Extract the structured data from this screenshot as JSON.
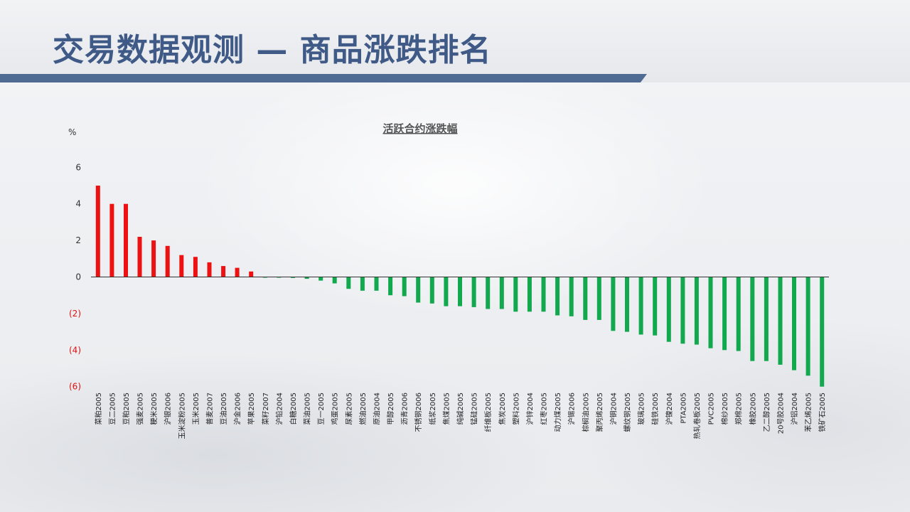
{
  "slide": {
    "title": "交易数据观测 — 商品涨跌排名"
  },
  "chart_data": {
    "type": "bar",
    "title": "活跃合约涨跌幅",
    "ylabel": "%",
    "ylim": [
      -6,
      6
    ],
    "yticks": [
      6,
      4,
      2,
      0,
      -2,
      -4,
      -6
    ],
    "ytick_labels": [
      "6",
      "4",
      "2",
      "0",
      "(2)",
      "(4)",
      "(6)"
    ],
    "grid": false,
    "legend": "none",
    "colors": {
      "positive": "#ee1111",
      "negative": "#11a84e",
      "negative_tick_label": "#dd1111",
      "axis": "#333333"
    },
    "categories": [
      "菜粕2005",
      "豆二2005",
      "豆粕2005",
      "强麦2005",
      "粳米2005",
      "沪银2006",
      "玉米淀粉2005",
      "玉米2005",
      "普麦2007",
      "豆油2005",
      "沪金2006",
      "苹果2005",
      "菜籽2007",
      "沪铅2004",
      "白糖2005",
      "菜油2005",
      "豆一2005",
      "鸡蛋2005",
      "尿素2005",
      "燃油2005",
      "原油2004",
      "甲醇2005",
      "沥青2006",
      "不锈钢2006",
      "纸浆2005",
      "焦煤2005",
      "纯碱2005",
      "锰硅2005",
      "纤维板2005",
      "焦炭2005",
      "塑料2005",
      "沪锌2004",
      "红枣2005",
      "动力煤2005",
      "沪锡2006",
      "棕榈油2005",
      "聚丙烯2005",
      "沪铜2004",
      "螺纹钢2005",
      "玻璃2005",
      "硅铁2005",
      "沪镍2004",
      "PTA2005",
      "热轧卷板2005",
      "PVC2005",
      "棉纱2005",
      "郑棉2005",
      "橡胶2005",
      "乙二醇2005",
      "20号胶2004",
      "沪铝2004",
      "苯乙烯2005",
      "铁矿石2005"
    ],
    "values": [
      5.0,
      4.0,
      4.0,
      2.2,
      2.0,
      1.7,
      1.2,
      1.1,
      0.8,
      0.6,
      0.5,
      0.3,
      -0.02,
      -0.03,
      -0.05,
      -0.1,
      -0.2,
      -0.35,
      -0.65,
      -0.75,
      -0.75,
      -1.0,
      -1.05,
      -1.4,
      -1.45,
      -1.6,
      -1.6,
      -1.65,
      -1.75,
      -1.75,
      -1.9,
      -1.9,
      -1.9,
      -2.1,
      -2.15,
      -2.35,
      -2.35,
      -2.95,
      -3.0,
      -3.15,
      -3.2,
      -3.55,
      -3.65,
      -3.7,
      -3.9,
      -4.0,
      -4.05,
      -4.6,
      -4.6,
      -4.8,
      -5.1,
      -5.4,
      -6.0
    ]
  }
}
